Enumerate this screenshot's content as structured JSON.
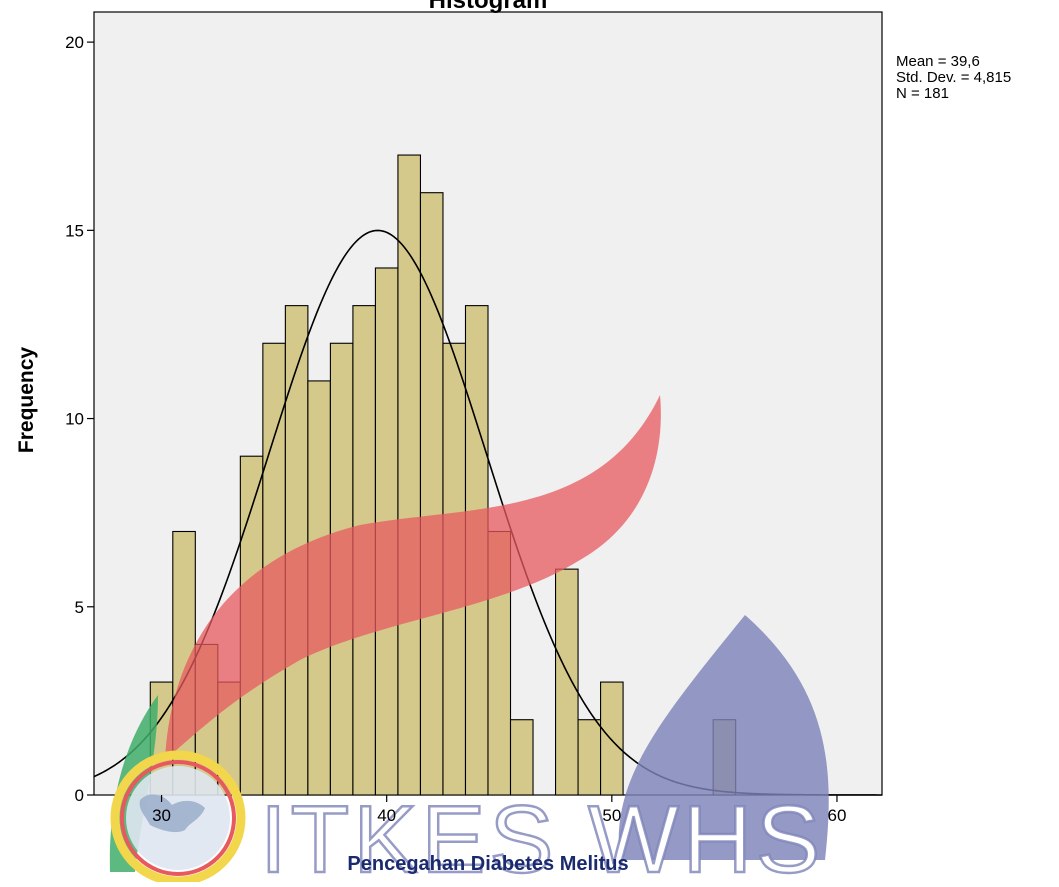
{
  "chart_data": {
    "type": "bar",
    "title": "Histogram",
    "xlabel": "Pencegahan Diabetes Melitus",
    "ylabel": "Frequency",
    "xlim": [
      27,
      62
    ],
    "ylim": [
      0,
      20.8
    ],
    "x_ticks": [
      "30",
      "40",
      "50",
      "60"
    ],
    "y_ticks": [
      "0",
      "5",
      "10",
      "15",
      "20"
    ],
    "bin_width": 1,
    "bins": [
      {
        "x": 30,
        "count": 3
      },
      {
        "x": 31,
        "count": 7
      },
      {
        "x": 32,
        "count": 4
      },
      {
        "x": 33,
        "count": 3
      },
      {
        "x": 34,
        "count": 9
      },
      {
        "x": 35,
        "count": 12
      },
      {
        "x": 36,
        "count": 13
      },
      {
        "x": 37,
        "count": 11
      },
      {
        "x": 38,
        "count": 12
      },
      {
        "x": 39,
        "count": 13
      },
      {
        "x": 40,
        "count": 14
      },
      {
        "x": 41,
        "count": 17
      },
      {
        "x": 42,
        "count": 16
      },
      {
        "x": 43,
        "count": 12
      },
      {
        "x": 44,
        "count": 13
      },
      {
        "x": 45,
        "count": 7
      },
      {
        "x": 46,
        "count": 2
      },
      {
        "x": 48,
        "count": 6
      },
      {
        "x": 49,
        "count": 2
      },
      {
        "x": 50,
        "count": 3
      },
      {
        "x": 55,
        "count": 2
      }
    ],
    "normal_curve": {
      "mean": 39.6,
      "std": 4.815,
      "n": 181
    },
    "stats_text": [
      "Mean = 39,6",
      "Std. Dev. = 4,815",
      "N = 181"
    ],
    "colors": {
      "bar_fill": "#d4c98a",
      "bar_stroke": "#000000",
      "plot_background": "#f0f0f0",
      "curve": "#000000"
    },
    "grid": false,
    "legend": "none"
  },
  "watermark": {
    "text": "ITKES WHS",
    "colors": {
      "red": "#e8595f",
      "blue": "#7d83b8",
      "green": "#3fae6a",
      "yellow": "#f2d64b"
    }
  }
}
